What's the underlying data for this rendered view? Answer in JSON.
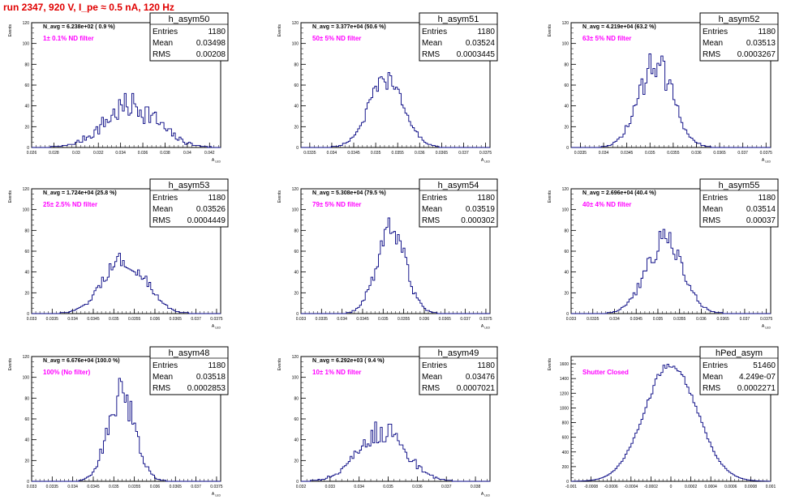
{
  "header": {
    "run_title": "run 2347,   920 V, I_pe ≈ 0.5 nA, 120 Hz"
  },
  "colors": {
    "histogram_line": "#000080",
    "annotation": "#ff00ff",
    "run_title": "#e00000"
  },
  "chart_data": [
    {
      "type": "histogram",
      "name": "h_asym50",
      "stats": {
        "Entries": "1180",
        "Mean": "0.03498",
        "RMS": "0.00208"
      },
      "navg_label": "N_avg = 6.238e+02 ( 0.9 %)",
      "annotation": "1± 0.1% ND filter",
      "xlabel": "A_LED",
      "ylabel": "Events",
      "xlim": [
        0.026,
        0.043
      ],
      "ylim": [
        0,
        120
      ],
      "xticks": [
        "0.026",
        "0.028",
        "0.03",
        "0.032",
        "0.034",
        "0.036",
        "0.038",
        "0.04",
        "0.042"
      ],
      "xtick_values": [
        0.026,
        0.028,
        0.03,
        0.032,
        0.034,
        0.036,
        0.038,
        0.04,
        0.042
      ],
      "yticks": [
        0,
        20,
        40,
        60,
        80,
        100,
        120
      ],
      "mean": 0.03498,
      "rms": 0.00208,
      "peak": 40,
      "noise": 0.35
    },
    {
      "type": "histogram",
      "name": "h_asym51",
      "stats": {
        "Entries": "1180",
        "Mean": "0.03524",
        "RMS": "0.0003445"
      },
      "navg_label": "N_avg = 3.377e+04 (50.6 %)",
      "annotation": "50± 5% ND filter",
      "xlabel": "A_LED",
      "ylabel": "Events",
      "xlim": [
        0.0333,
        0.0376
      ],
      "ylim": [
        0,
        120
      ],
      "xticks": [
        "0.0335",
        "0.034",
        "0.0345",
        "0.035",
        "0.0355",
        "0.036",
        "0.0365",
        "0.037",
        "0.0375"
      ],
      "xtick_values": [
        0.0335,
        0.034,
        0.0345,
        0.035,
        0.0355,
        0.036,
        0.0365,
        0.037,
        0.0375
      ],
      "yticks": [
        0,
        20,
        40,
        60,
        80,
        100,
        120
      ],
      "mean": 0.03524,
      "rms": 0.0003445,
      "peak": 65,
      "noise": 0.15
    },
    {
      "type": "histogram",
      "name": "h_asym52",
      "stats": {
        "Entries": "1180",
        "Mean": "0.03513",
        "RMS": "0.0003267"
      },
      "navg_label": "N_avg = 4.219e+04 (63.2 %)",
      "annotation": "63± 5% ND filter",
      "xlabel": "A_LED",
      "ylabel": "Events",
      "xlim": [
        0.0333,
        0.0376
      ],
      "ylim": [
        0,
        120
      ],
      "xticks": [
        "0.0335",
        "0.034",
        "0.0345",
        "0.035",
        "0.0355",
        "0.036",
        "0.0365",
        "0.037",
        "0.0375"
      ],
      "xtick_values": [
        0.0335,
        0.034,
        0.0345,
        0.035,
        0.0355,
        0.036,
        0.0365,
        0.037,
        0.0375
      ],
      "yticks": [
        0,
        20,
        40,
        60,
        80,
        100,
        120
      ],
      "mean": 0.03513,
      "rms": 0.0003267,
      "peak": 80,
      "noise": 0.2
    },
    {
      "type": "histogram",
      "name": "h_asym53",
      "stats": {
        "Entries": "1180",
        "Mean": "0.03526",
        "RMS": "0.0004449"
      },
      "navg_label": "N_avg = 1.724e+04 (25.8 %)",
      "annotation": "25± 2.5% ND filter",
      "xlabel": "A_LED",
      "ylabel": "Events",
      "xlim": [
        0.033,
        0.0376
      ],
      "ylim": [
        0,
        120
      ],
      "xticks": [
        "0.033",
        "0.0335",
        "0.034",
        "0.0345",
        "0.035",
        "0.0355",
        "0.036",
        "0.0365",
        "0.037",
        "0.0375"
      ],
      "xtick_values": [
        0.033,
        0.0335,
        0.034,
        0.0345,
        0.035,
        0.0355,
        0.036,
        0.0365,
        0.037,
        0.0375
      ],
      "yticks": [
        0,
        20,
        40,
        60,
        80,
        100,
        120
      ],
      "mean": 0.03526,
      "rms": 0.0004449,
      "peak": 52,
      "noise": 0.18
    },
    {
      "type": "histogram",
      "name": "h_asym54",
      "stats": {
        "Entries": "1180",
        "Mean": "0.03519",
        "RMS": "0.000302"
      },
      "navg_label": "N_avg = 5.308e+04 (79.5 %)",
      "annotation": "79± 5% ND filter",
      "xlabel": "A_LED",
      "ylabel": "Events",
      "xlim": [
        0.033,
        0.0376
      ],
      "ylim": [
        0,
        120
      ],
      "xticks": [
        "0.033",
        "0.0335",
        "0.034",
        "0.0345",
        "0.035",
        "0.0355",
        "0.036",
        "0.0365",
        "0.037",
        "0.0375"
      ],
      "xtick_values": [
        0.033,
        0.0335,
        0.034,
        0.0345,
        0.035,
        0.0355,
        0.036,
        0.0365,
        0.037,
        0.0375
      ],
      "yticks": [
        0,
        20,
        40,
        60,
        80,
        100,
        120
      ],
      "mean": 0.03519,
      "rms": 0.000302,
      "peak": 80,
      "noise": 0.2
    },
    {
      "type": "histogram",
      "name": "h_asym55",
      "stats": {
        "Entries": "1180",
        "Mean": "0.03514",
        "RMS": "0.00037"
      },
      "navg_label": "N_avg = 2.696e+04 (40.4 %)",
      "annotation": "40± 4% ND filter",
      "xlabel": "A_LED",
      "ylabel": "Events",
      "xlim": [
        0.033,
        0.0376
      ],
      "ylim": [
        0,
        120
      ],
      "xticks": [
        "0.033",
        "0.0335",
        "0.034",
        "0.0345",
        "0.035",
        "0.0355",
        "0.036",
        "0.0365",
        "0.037",
        "0.0375"
      ],
      "xtick_values": [
        0.033,
        0.0335,
        0.034,
        0.0345,
        0.035,
        0.0355,
        0.036,
        0.0365,
        0.037,
        0.0375
      ],
      "yticks": [
        0,
        20,
        40,
        60,
        80,
        100,
        120
      ],
      "mean": 0.03514,
      "rms": 0.00037,
      "peak": 70,
      "noise": 0.2
    },
    {
      "type": "histogram",
      "name": "h_asym48",
      "stats": {
        "Entries": "1180",
        "Mean": "0.03518",
        "RMS": "0.0002853"
      },
      "navg_label": "N_avg = 6.676e+04 (100.0 %)",
      "annotation": "100% (No filter)",
      "xlabel": "A_LED",
      "ylabel": "Events",
      "xlim": [
        0.033,
        0.0376
      ],
      "ylim": [
        0,
        120
      ],
      "xticks": [
        "0.033",
        "0.0335",
        "0.034",
        "0.0345",
        "0.035",
        "0.0355",
        "0.036",
        "0.0365",
        "0.037",
        "0.0375"
      ],
      "xtick_values": [
        0.033,
        0.0335,
        0.034,
        0.0345,
        0.035,
        0.0355,
        0.036,
        0.0365,
        0.037,
        0.0375
      ],
      "yticks": [
        0,
        20,
        40,
        60,
        80,
        100,
        120
      ],
      "mean": 0.03518,
      "rms": 0.0002853,
      "peak": 86,
      "noise": 0.2
    },
    {
      "type": "histogram",
      "name": "h_asym49",
      "stats": {
        "Entries": "1180",
        "Mean": "0.03476",
        "RMS": "0.0007021"
      },
      "navg_label": "N_avg = 6.292e+03 ( 9.4 %)",
      "annotation": "10± 1% ND filter",
      "xlabel": "A_LED",
      "ylabel": "Events",
      "xlim": [
        0.032,
        0.0385
      ],
      "ylim": [
        0,
        120
      ],
      "xticks": [
        "0.032",
        "0.033",
        "0.034",
        "0.035",
        "0.036",
        "0.037",
        "0.038"
      ],
      "xtick_values": [
        0.032,
        0.033,
        0.034,
        0.035,
        0.036,
        0.037,
        0.038
      ],
      "yticks": [
        0,
        20,
        40,
        60,
        80,
        100,
        120
      ],
      "mean": 0.03476,
      "rms": 0.0007021,
      "peak": 48,
      "noise": 0.25
    },
    {
      "type": "histogram",
      "name": "hPed_asym",
      "stats": {
        "Entries": "51460",
        "Mean": "4.249e-07",
        "RMS": "0.0002271"
      },
      "navg_label": "",
      "annotation": "Shutter Closed",
      "xlabel": "",
      "ylabel": "Events",
      "xlim": [
        -0.001,
        0.001
      ],
      "ylim": [
        0,
        1700
      ],
      "xticks": [
        "-0.001",
        "-0.0008",
        "-0.0006",
        "-0.0004",
        "-0.0002",
        "0",
        "0.0002",
        "0.0004",
        "0.0006",
        "0.0008",
        "0.001"
      ],
      "xtick_values": [
        -0.001,
        -0.0008,
        -0.0006,
        -0.0004,
        -0.0002,
        0,
        0.0002,
        0.0004,
        0.0006,
        0.0008,
        0.001
      ],
      "yticks": [
        0,
        200,
        400,
        600,
        800,
        1000,
        1200,
        1400,
        1600
      ],
      "mean": 0.0,
      "rms": 0.0002271,
      "peak": 1600,
      "noise": 0.03
    }
  ]
}
